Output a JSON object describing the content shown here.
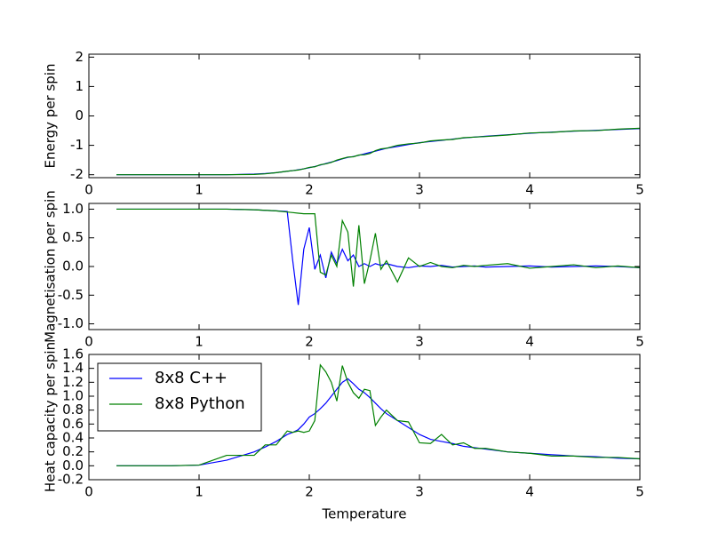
{
  "chart_data": [
    {
      "type": "line",
      "y_label": "Energy per spin",
      "x": [
        0.25,
        0.5,
        0.75,
        1.0,
        1.25,
        1.5,
        1.6,
        1.7,
        1.8,
        1.85,
        1.9,
        1.95,
        2.0,
        2.05,
        2.1,
        2.15,
        2.2,
        2.25,
        2.3,
        2.35,
        2.4,
        2.45,
        2.5,
        2.55,
        2.6,
        2.65,
        2.7,
        2.8,
        2.9,
        3.0,
        3.1,
        3.2,
        3.3,
        3.4,
        3.5,
        3.6,
        3.8,
        4.0,
        4.2,
        4.4,
        4.6,
        4.8,
        5.0
      ],
      "series": [
        {
          "color": "#0000ff",
          "values": [
            -2,
            -2,
            -2,
            -2,
            -2,
            -1.98,
            -1.96,
            -1.93,
            -1.88,
            -1.86,
            -1.83,
            -1.8,
            -1.76,
            -1.72,
            -1.67,
            -1.62,
            -1.57,
            -1.52,
            -1.46,
            -1.41,
            -1.38,
            -1.34,
            -1.29,
            -1.24,
            -1.2,
            -1.15,
            -1.1,
            -1.04,
            -0.97,
            -0.91,
            -0.87,
            -0.83,
            -0.79,
            -0.75,
            -0.72,
            -0.69,
            -0.64,
            -0.59,
            -0.55,
            -0.52,
            -0.49,
            -0.46,
            -0.43
          ]
        },
        {
          "color": "#008000",
          "values": [
            -2,
            -2,
            -2,
            -2,
            -2,
            -1.99,
            -1.97,
            -1.93,
            -1.88,
            -1.86,
            -1.84,
            -1.8,
            -1.75,
            -1.73,
            -1.66,
            -1.63,
            -1.58,
            -1.5,
            -1.45,
            -1.4,
            -1.39,
            -1.33,
            -1.32,
            -1.28,
            -1.18,
            -1.12,
            -1.1,
            -1.0,
            -0.95,
            -0.92,
            -0.85,
            -0.82,
            -0.8,
            -0.74,
            -0.72,
            -0.7,
            -0.65,
            -0.58,
            -0.56,
            -0.51,
            -0.5,
            -0.45,
            -0.42
          ]
        }
      ],
      "xlim": [
        0,
        5
      ],
      "xticks": [
        0,
        1,
        2,
        3,
        4,
        5
      ],
      "ylim": [
        -2.1,
        2.1
      ],
      "yticks": [
        -2,
        -1,
        0,
        1,
        2
      ]
    },
    {
      "type": "line",
      "y_label": "Magnetisation per spin",
      "x": [
        0.25,
        0.5,
        0.75,
        1.0,
        1.25,
        1.5,
        1.6,
        1.7,
        1.8,
        1.85,
        1.9,
        1.95,
        2.0,
        2.05,
        2.1,
        2.15,
        2.2,
        2.25,
        2.3,
        2.35,
        2.4,
        2.45,
        2.5,
        2.55,
        2.6,
        2.65,
        2.7,
        2.8,
        2.9,
        3.0,
        3.1,
        3.2,
        3.3,
        3.4,
        3.5,
        3.6,
        3.8,
        4.0,
        4.2,
        4.4,
        4.6,
        4.8,
        5.0
      ],
      "series": [
        {
          "color": "#0000ff",
          "values": [
            1,
            1,
            1,
            1,
            1,
            0.99,
            0.98,
            0.97,
            0.96,
            0.1,
            -0.67,
            0.3,
            0.68,
            -0.05,
            0.2,
            -0.2,
            0.25,
            0.05,
            0.3,
            0.1,
            0.2,
            0.0,
            0.05,
            0.0,
            0.05,
            0.02,
            0.05,
            0.0,
            -0.02,
            0.01,
            0.0,
            0.02,
            -0.01,
            0.0,
            0.01,
            -0.01,
            0.0,
            0.01,
            -0.01,
            0.0,
            0.01,
            0.0,
            -0.02
          ]
        },
        {
          "color": "#008000",
          "values": [
            1,
            1,
            1,
            1,
            1,
            0.99,
            0.98,
            0.97,
            0.95,
            0.94,
            0.93,
            0.92,
            0.92,
            0.92,
            -0.1,
            -0.15,
            0.2,
            0.0,
            0.8,
            0.6,
            -0.35,
            0.72,
            -0.3,
            0.1,
            0.58,
            -0.05,
            0.1,
            -0.27,
            0.15,
            0.0,
            0.07,
            0.0,
            -0.02,
            0.02,
            0.0,
            0.02,
            0.05,
            -0.03,
            0.0,
            0.03,
            -0.02,
            0.01,
            -0.02
          ]
        }
      ],
      "xlim": [
        0,
        5
      ],
      "xticks": [
        0,
        1,
        2,
        3,
        4,
        5
      ],
      "ylim": [
        -1.1,
        1.1
      ],
      "yticks": [
        {
          "value": -1,
          "label": "-1.0"
        },
        -0.5,
        {
          "value": 0,
          "label": "0.0"
        },
        0.5,
        {
          "value": 1,
          "label": "1.0"
        }
      ]
    },
    {
      "type": "line",
      "y_label": "Heat capacity per spin",
      "x_label": "Temperature",
      "x": [
        0.25,
        0.5,
        0.75,
        1.0,
        1.25,
        1.5,
        1.6,
        1.7,
        1.8,
        1.85,
        1.9,
        1.95,
        2.0,
        2.05,
        2.1,
        2.15,
        2.2,
        2.25,
        2.3,
        2.35,
        2.4,
        2.45,
        2.5,
        2.55,
        2.6,
        2.65,
        2.7,
        2.8,
        2.9,
        3.0,
        3.1,
        3.2,
        3.3,
        3.4,
        3.5,
        3.6,
        3.8,
        4.0,
        4.2,
        4.4,
        4.6,
        4.8,
        5.0
      ],
      "series": [
        {
          "name": "8x8 C++",
          "color": "#0000ff",
          "values": [
            0,
            0,
            0,
            0.01,
            0.08,
            0.2,
            0.27,
            0.35,
            0.45,
            0.48,
            0.52,
            0.6,
            0.7,
            0.75,
            0.82,
            0.9,
            1.0,
            1.1,
            1.2,
            1.25,
            1.18,
            1.1,
            1.05,
            0.98,
            0.9,
            0.82,
            0.75,
            0.65,
            0.55,
            0.45,
            0.38,
            0.35,
            0.32,
            0.28,
            0.26,
            0.24,
            0.2,
            0.18,
            0.16,
            0.14,
            0.13,
            0.11,
            0.1
          ]
        },
        {
          "name": "8x8 Python",
          "color": "#008000",
          "values": [
            0,
            0,
            0,
            0.01,
            0.15,
            0.15,
            0.3,
            0.3,
            0.5,
            0.48,
            0.5,
            0.48,
            0.5,
            0.65,
            1.45,
            1.35,
            1.2,
            0.93,
            1.44,
            1.2,
            1.05,
            0.97,
            1.1,
            1.08,
            0.58,
            0.7,
            0.8,
            0.65,
            0.63,
            0.33,
            0.32,
            0.45,
            0.3,
            0.33,
            0.25,
            0.25,
            0.2,
            0.18,
            0.14,
            0.14,
            0.12,
            0.12,
            0.1
          ]
        }
      ],
      "xlim": [
        0,
        5
      ],
      "xticks": [
        0,
        1,
        2,
        3,
        4,
        5
      ],
      "ylim": [
        -0.2,
        1.6
      ],
      "yticks": [
        -0.2,
        {
          "value": 0,
          "label": "0.0"
        },
        0.2,
        0.4,
        0.6,
        0.8,
        {
          "value": 1,
          "label": "1.0"
        },
        1.2,
        1.4,
        1.6
      ],
      "legend": "upper left"
    }
  ]
}
